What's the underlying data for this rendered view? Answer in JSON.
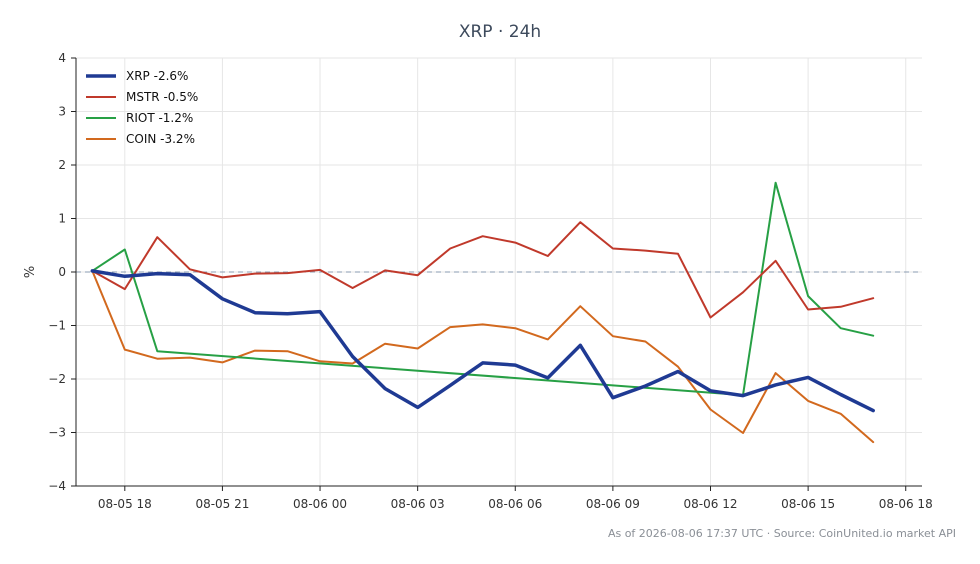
{
  "chart_data": {
    "type": "line",
    "title": "XRP · 24h",
    "xlabel": "",
    "ylabel": "%",
    "ylim": [
      -4,
      4
    ],
    "yticks": [
      -4,
      -3,
      -2,
      -1,
      0,
      1,
      2,
      3,
      4
    ],
    "xlim": [
      "08-05 16:30",
      "08-06 18:30"
    ],
    "xticks": [
      "08-05 18",
      "08-05 21",
      "08-06 00",
      "08-06 03",
      "08-06 06",
      "08-06 09",
      "08-06 12",
      "08-06 15",
      "08-06 18"
    ],
    "baseline": 0,
    "grid": true,
    "legend_position": "top-left",
    "x": [
      "08-05 17:00",
      "08-05 18:00",
      "08-05 19:00",
      "08-05 20:00",
      "08-05 21:00",
      "08-05 22:00",
      "08-05 23:00",
      "08-06 00:00",
      "08-06 01:00",
      "08-06 02:00",
      "08-06 03:00",
      "08-06 04:00",
      "08-06 05:00",
      "08-06 06:00",
      "08-06 07:00",
      "08-06 08:00",
      "08-06 09:00",
      "08-06 10:00",
      "08-06 11:00",
      "08-06 12:00",
      "08-06 13:00",
      "08-06 14:00",
      "08-06 15:00",
      "08-06 16:00",
      "08-06 17:00"
    ],
    "series": [
      {
        "name": "XRP -2.6%",
        "color": "#1f3a93",
        "values": [
          0.02,
          -0.08,
          -0.03,
          -0.05,
          -0.5,
          -0.76,
          -0.78,
          -0.74,
          -1.58,
          -2.18,
          -2.53,
          -2.12,
          -1.7,
          -1.74,
          -1.98,
          -1.37,
          -2.35,
          -2.13,
          -1.86,
          -2.22,
          -2.31,
          -2.11,
          -1.97,
          -2.29,
          -2.59
        ]
      },
      {
        "name": "MSTR -0.5%",
        "color": "#c0392b",
        "values": [
          0.02,
          -0.32,
          0.65,
          0.05,
          -0.1,
          -0.03,
          -0.02,
          0.04,
          -0.3,
          0.03,
          -0.06,
          0.44,
          0.67,
          0.55,
          0.3,
          0.93,
          0.44,
          0.4,
          0.34,
          -0.85,
          -0.38,
          0.21,
          -0.7,
          -0.65,
          -0.49
        ]
      },
      {
        "name": "RIOT -1.2%",
        "color": "#27a045",
        "values": [
          0.02,
          0.42,
          -1.48,
          null,
          null,
          null,
          null,
          null,
          null,
          null,
          null,
          null,
          null,
          null,
          null,
          null,
          null,
          null,
          null,
          null,
          -2.3,
          1.67,
          -0.45,
          -1.05,
          -1.19
        ]
      },
      {
        "name": "COIN -3.2%",
        "color": "#d2691e",
        "values": [
          0.02,
          -1.45,
          -1.62,
          -1.6,
          -1.69,
          -1.47,
          -1.48,
          -1.67,
          -1.71,
          -1.34,
          -1.43,
          -1.03,
          -0.98,
          -1.05,
          -1.26,
          -0.64,
          -1.2,
          -1.3,
          -1.77,
          -2.57,
          -3.01,
          -1.89,
          -2.41,
          -2.65,
          -3.18
        ]
      }
    ]
  },
  "footer": {
    "text": "As of 2026-08-06 17:37 UTC · Source: CoinUnited.io market API"
  }
}
